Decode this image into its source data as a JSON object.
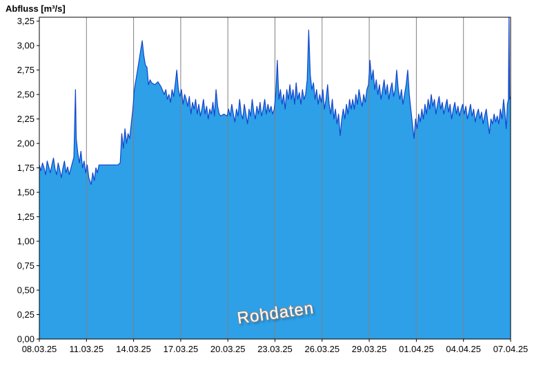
{
  "title": "Abfluss [m³/s]",
  "watermark": "Rohdaten",
  "chart_data": {
    "type": "area",
    "title": "Abfluss [m³/s]",
    "xlabel": "",
    "ylabel": "Abfluss [m³/s]",
    "legend": "none",
    "grid": "vertical-only",
    "xlim_days": [
      0,
      30
    ],
    "ylim": [
      0,
      3.29
    ],
    "x_ticks_days": [
      0,
      3,
      6,
      9,
      12,
      15,
      18,
      21,
      24,
      27,
      30
    ],
    "x_tick_labels": [
      "08.03.25",
      "11.03.25",
      "14.03.25",
      "17.03.25",
      "20.03.25",
      "23.03.25",
      "26.03.25",
      "29.03.25",
      "01.04.25",
      "04.04.25",
      "07.04.25"
    ],
    "y_ticks": [
      0,
      0.25,
      0.5,
      0.75,
      1,
      1.25,
      1.5,
      1.75,
      2,
      2.25,
      2.5,
      2.75,
      3,
      3.25
    ],
    "y_tick_labels": [
      "0,00",
      "0,25",
      "0,50",
      "0,75",
      "1,00",
      "1,25",
      "1,50",
      "1,75",
      "2,00",
      "2,25",
      "2,50",
      "2,75",
      "3,00",
      "3,25"
    ],
    "colors": {
      "fill": "#2da0e8",
      "line": "#1144cc",
      "grid": "#808080",
      "frame": "#000000"
    },
    "series": [
      {
        "name": "Rohdaten",
        "points": [
          [
            0,
            1.78
          ],
          [
            0.1,
            1.72
          ],
          [
            0.2,
            1.8
          ],
          [
            0.3,
            1.75
          ],
          [
            0.4,
            1.68
          ],
          [
            0.5,
            1.82
          ],
          [
            0.6,
            1.76
          ],
          [
            0.7,
            1.7
          ],
          [
            0.8,
            1.78
          ],
          [
            0.9,
            1.85
          ],
          [
            1,
            1.74
          ],
          [
            1.1,
            1.68
          ],
          [
            1.2,
            1.8
          ],
          [
            1.3,
            1.73
          ],
          [
            1.4,
            1.65
          ],
          [
            1.5,
            1.75
          ],
          [
            1.6,
            1.82
          ],
          [
            1.7,
            1.7
          ],
          [
            1.8,
            1.76
          ],
          [
            1.9,
            1.68
          ],
          [
            2,
            1.74
          ],
          [
            2.1,
            1.8
          ],
          [
            2.2,
            1.86
          ],
          [
            2.3,
            2.55
          ],
          [
            2.35,
            2.05
          ],
          [
            2.45,
            1.9
          ],
          [
            2.55,
            1.8
          ],
          [
            2.65,
            1.92
          ],
          [
            2.75,
            1.75
          ],
          [
            2.85,
            1.82
          ],
          [
            2.95,
            1.7
          ],
          [
            3.05,
            1.78
          ],
          [
            3.15,
            1.65
          ],
          [
            3.3,
            1.58
          ],
          [
            3.4,
            1.7
          ],
          [
            3.5,
            1.62
          ],
          [
            3.6,
            1.75
          ],
          [
            3.7,
            1.7
          ],
          [
            3.8,
            1.78
          ],
          [
            4.2,
            1.78
          ],
          [
            4.6,
            1.78
          ],
          [
            5,
            1.78
          ],
          [
            5.15,
            1.8
          ],
          [
            5.25,
            2.1
          ],
          [
            5.35,
            1.95
          ],
          [
            5.45,
            2.15
          ],
          [
            5.55,
            2
          ],
          [
            5.65,
            2.1
          ],
          [
            5.75,
            2.05
          ],
          [
            5.85,
            2.2
          ],
          [
            5.95,
            2.35
          ],
          [
            6.05,
            2.55
          ],
          [
            6.15,
            2.65
          ],
          [
            6.25,
            2.75
          ],
          [
            6.35,
            2.85
          ],
          [
            6.45,
            2.95
          ],
          [
            6.55,
            3.05
          ],
          [
            6.65,
            2.9
          ],
          [
            6.75,
            2.8
          ],
          [
            6.85,
            2.78
          ],
          [
            6.95,
            2.6
          ],
          [
            7.05,
            2.65
          ],
          [
            7.15,
            2.62
          ],
          [
            7.35,
            2.6
          ],
          [
            7.55,
            2.63
          ],
          [
            7.75,
            2.58
          ],
          [
            7.95,
            2.5
          ],
          [
            8.05,
            2.55
          ],
          [
            8.15,
            2.45
          ],
          [
            8.25,
            2.5
          ],
          [
            8.35,
            2.42
          ],
          [
            8.45,
            2.55
          ],
          [
            8.55,
            2.48
          ],
          [
            8.65,
            2.6
          ],
          [
            8.75,
            2.75
          ],
          [
            8.85,
            2.55
          ],
          [
            8.95,
            2.48
          ],
          [
            9.05,
            2.55
          ],
          [
            9.15,
            2.4
          ],
          [
            9.25,
            2.5
          ],
          [
            9.35,
            2.45
          ],
          [
            9.45,
            2.38
          ],
          [
            9.55,
            2.48
          ],
          [
            9.65,
            2.3
          ],
          [
            9.75,
            2.42
          ],
          [
            9.85,
            2.35
          ],
          [
            9.95,
            2.45
          ],
          [
            10.05,
            2.3
          ],
          [
            10.15,
            2.4
          ],
          [
            10.25,
            2.28
          ],
          [
            10.35,
            2.35
          ],
          [
            10.45,
            2.45
          ],
          [
            10.55,
            2.3
          ],
          [
            10.65,
            2.38
          ],
          [
            10.75,
            2.25
          ],
          [
            10.85,
            2.35
          ],
          [
            10.95,
            2.3
          ],
          [
            11.05,
            2.42
          ],
          [
            11.15,
            2.28
          ],
          [
            11.25,
            2.55
          ],
          [
            11.35,
            2.38
          ],
          [
            11.45,
            2.3
          ],
          [
            11.55,
            2.28
          ],
          [
            11.75,
            2.3
          ],
          [
            11.95,
            2.28
          ],
          [
            12.05,
            2.35
          ],
          [
            12.15,
            2.28
          ],
          [
            12.25,
            2.4
          ],
          [
            12.35,
            2.3
          ],
          [
            12.45,
            2.22
          ],
          [
            12.55,
            2.35
          ],
          [
            12.65,
            2.28
          ],
          [
            12.75,
            2.45
          ],
          [
            12.85,
            2.3
          ],
          [
            12.95,
            2.25
          ],
          [
            13.05,
            2.4
          ],
          [
            13.15,
            2.3
          ],
          [
            13.25,
            2.2
          ],
          [
            13.35,
            2.35
          ],
          [
            13.45,
            2.28
          ],
          [
            13.55,
            2.45
          ],
          [
            13.65,
            2.32
          ],
          [
            13.75,
            2.25
          ],
          [
            13.85,
            2.38
          ],
          [
            13.95,
            2.3
          ],
          [
            14.05,
            2.42
          ],
          [
            14.15,
            2.28
          ],
          [
            14.25,
            2.35
          ],
          [
            14.35,
            2.45
          ],
          [
            14.45,
            2.3
          ],
          [
            14.55,
            2.4
          ],
          [
            14.65,
            2.32
          ],
          [
            14.75,
            2.38
          ],
          [
            14.85,
            2.3
          ],
          [
            14.95,
            2.35
          ],
          [
            15.05,
            2.5
          ],
          [
            15.15,
            2.85
          ],
          [
            15.25,
            2.45
          ],
          [
            15.35,
            2.55
          ],
          [
            15.45,
            2.4
          ],
          [
            15.55,
            2.5
          ],
          [
            15.65,
            2.35
          ],
          [
            15.75,
            2.55
          ],
          [
            15.85,
            2.45
          ],
          [
            15.95,
            2.6
          ],
          [
            16.05,
            2.45
          ],
          [
            16.15,
            2.55
          ],
          [
            16.25,
            2.4
          ],
          [
            16.35,
            2.62
          ],
          [
            16.45,
            2.45
          ],
          [
            16.55,
            2.52
          ],
          [
            16.65,
            2.4
          ],
          [
            16.75,
            2.55
          ],
          [
            16.85,
            2.45
          ],
          [
            16.95,
            2.5
          ],
          [
            17.05,
            2.65
          ],
          [
            17.15,
            3.16
          ],
          [
            17.25,
            2.7
          ],
          [
            17.35,
            2.55
          ],
          [
            17.45,
            2.62
          ],
          [
            17.55,
            2.45
          ],
          [
            17.65,
            2.55
          ],
          [
            17.75,
            2.4
          ],
          [
            17.85,
            2.5
          ],
          [
            17.95,
            2.42
          ],
          [
            18.05,
            2.55
          ],
          [
            18.15,
            2.35
          ],
          [
            18.25,
            2.45
          ],
          [
            18.35,
            2.6
          ],
          [
            18.45,
            2.4
          ],
          [
            18.55,
            2.3
          ],
          [
            18.65,
            2.45
          ],
          [
            18.75,
            2.25
          ],
          [
            18.85,
            2.35
          ],
          [
            18.95,
            2.2
          ],
          [
            19.05,
            2.3
          ],
          [
            19.15,
            2.08
          ],
          [
            19.25,
            2.25
          ],
          [
            19.35,
            2.35
          ],
          [
            19.45,
            2.25
          ],
          [
            19.55,
            2.4
          ],
          [
            19.65,
            2.3
          ],
          [
            19.75,
            2.45
          ],
          [
            19.85,
            2.35
          ],
          [
            19.95,
            2.45
          ],
          [
            20.05,
            2.35
          ],
          [
            20.15,
            2.5
          ],
          [
            20.25,
            2.4
          ],
          [
            20.35,
            2.55
          ],
          [
            20.45,
            2.45
          ],
          [
            20.55,
            2.38
          ],
          [
            20.65,
            2.5
          ],
          [
            20.75,
            2.42
          ],
          [
            20.85,
            2.55
          ],
          [
            20.95,
            2.6
          ],
          [
            21.05,
            2.85
          ],
          [
            21.15,
            2.65
          ],
          [
            21.25,
            2.75
          ],
          [
            21.35,
            2.55
          ],
          [
            21.45,
            2.65
          ],
          [
            21.55,
            2.5
          ],
          [
            21.65,
            2.6
          ],
          [
            21.75,
            2.45
          ],
          [
            21.85,
            2.55
          ],
          [
            21.95,
            2.65
          ],
          [
            22.05,
            2.5
          ],
          [
            22.15,
            2.6
          ],
          [
            22.25,
            2.45
          ],
          [
            22.35,
            2.55
          ],
          [
            22.45,
            2.62
          ],
          [
            22.55,
            2.48
          ],
          [
            22.65,
            2.55
          ],
          [
            22.75,
            2.75
          ],
          [
            22.85,
            2.55
          ],
          [
            22.95,
            2.45
          ],
          [
            23.05,
            2.55
          ],
          [
            23.15,
            2.4
          ],
          [
            23.25,
            2.5
          ],
          [
            23.35,
            2.6
          ],
          [
            23.45,
            2.75
          ],
          [
            23.55,
            2.5
          ],
          [
            23.65,
            2.35
          ],
          [
            23.75,
            2.2
          ],
          [
            23.85,
            2.05
          ],
          [
            23.95,
            2.25
          ],
          [
            24.05,
            2.15
          ],
          [
            24.15,
            2.3
          ],
          [
            24.25,
            2.22
          ],
          [
            24.35,
            2.35
          ],
          [
            24.45,
            2.25
          ],
          [
            24.55,
            2.4
          ],
          [
            24.65,
            2.3
          ],
          [
            24.75,
            2.45
          ],
          [
            24.85,
            2.35
          ],
          [
            24.95,
            2.5
          ],
          [
            25.05,
            2.38
          ],
          [
            25.15,
            2.45
          ],
          [
            25.25,
            2.3
          ],
          [
            25.35,
            2.4
          ],
          [
            25.45,
            2.48
          ],
          [
            25.55,
            2.35
          ],
          [
            25.65,
            2.42
          ],
          [
            25.75,
            2.3
          ],
          [
            25.85,
            2.38
          ],
          [
            25.95,
            2.45
          ],
          [
            26.05,
            2.32
          ],
          [
            26.15,
            2.4
          ],
          [
            26.25,
            2.25
          ],
          [
            26.35,
            2.35
          ],
          [
            26.45,
            2.42
          ],
          [
            26.55,
            2.3
          ],
          [
            26.65,
            2.38
          ],
          [
            26.75,
            2.28
          ],
          [
            26.85,
            2.35
          ],
          [
            26.95,
            2.4
          ],
          [
            27.05,
            2.3
          ],
          [
            27.15,
            2.38
          ],
          [
            27.25,
            2.25
          ],
          [
            27.35,
            2.32
          ],
          [
            27.45,
            2.4
          ],
          [
            27.55,
            2.28
          ],
          [
            27.65,
            2.35
          ],
          [
            27.75,
            2.22
          ],
          [
            27.85,
            2.3
          ],
          [
            27.95,
            2.35
          ],
          [
            28.05,
            2.25
          ],
          [
            28.15,
            2.32
          ],
          [
            28.25,
            2.2
          ],
          [
            28.35,
            2.28
          ],
          [
            28.45,
            2.35
          ],
          [
            28.55,
            2.22
          ],
          [
            28.65,
            2.1
          ],
          [
            28.75,
            2.25
          ],
          [
            28.85,
            2.2
          ],
          [
            28.95,
            2.3
          ],
          [
            29.05,
            2.22
          ],
          [
            29.15,
            2.28
          ],
          [
            29.25,
            2.2
          ],
          [
            29.35,
            2.35
          ],
          [
            29.45,
            2.25
          ],
          [
            29.55,
            2.45
          ],
          [
            29.65,
            2.3
          ],
          [
            29.72,
            2.15
          ],
          [
            29.8,
            2.4
          ],
          [
            29.86,
            2.45
          ],
          [
            29.9,
            3.29
          ],
          [
            29.94,
            2.45
          ],
          [
            30,
            2.48
          ]
        ]
      }
    ]
  }
}
